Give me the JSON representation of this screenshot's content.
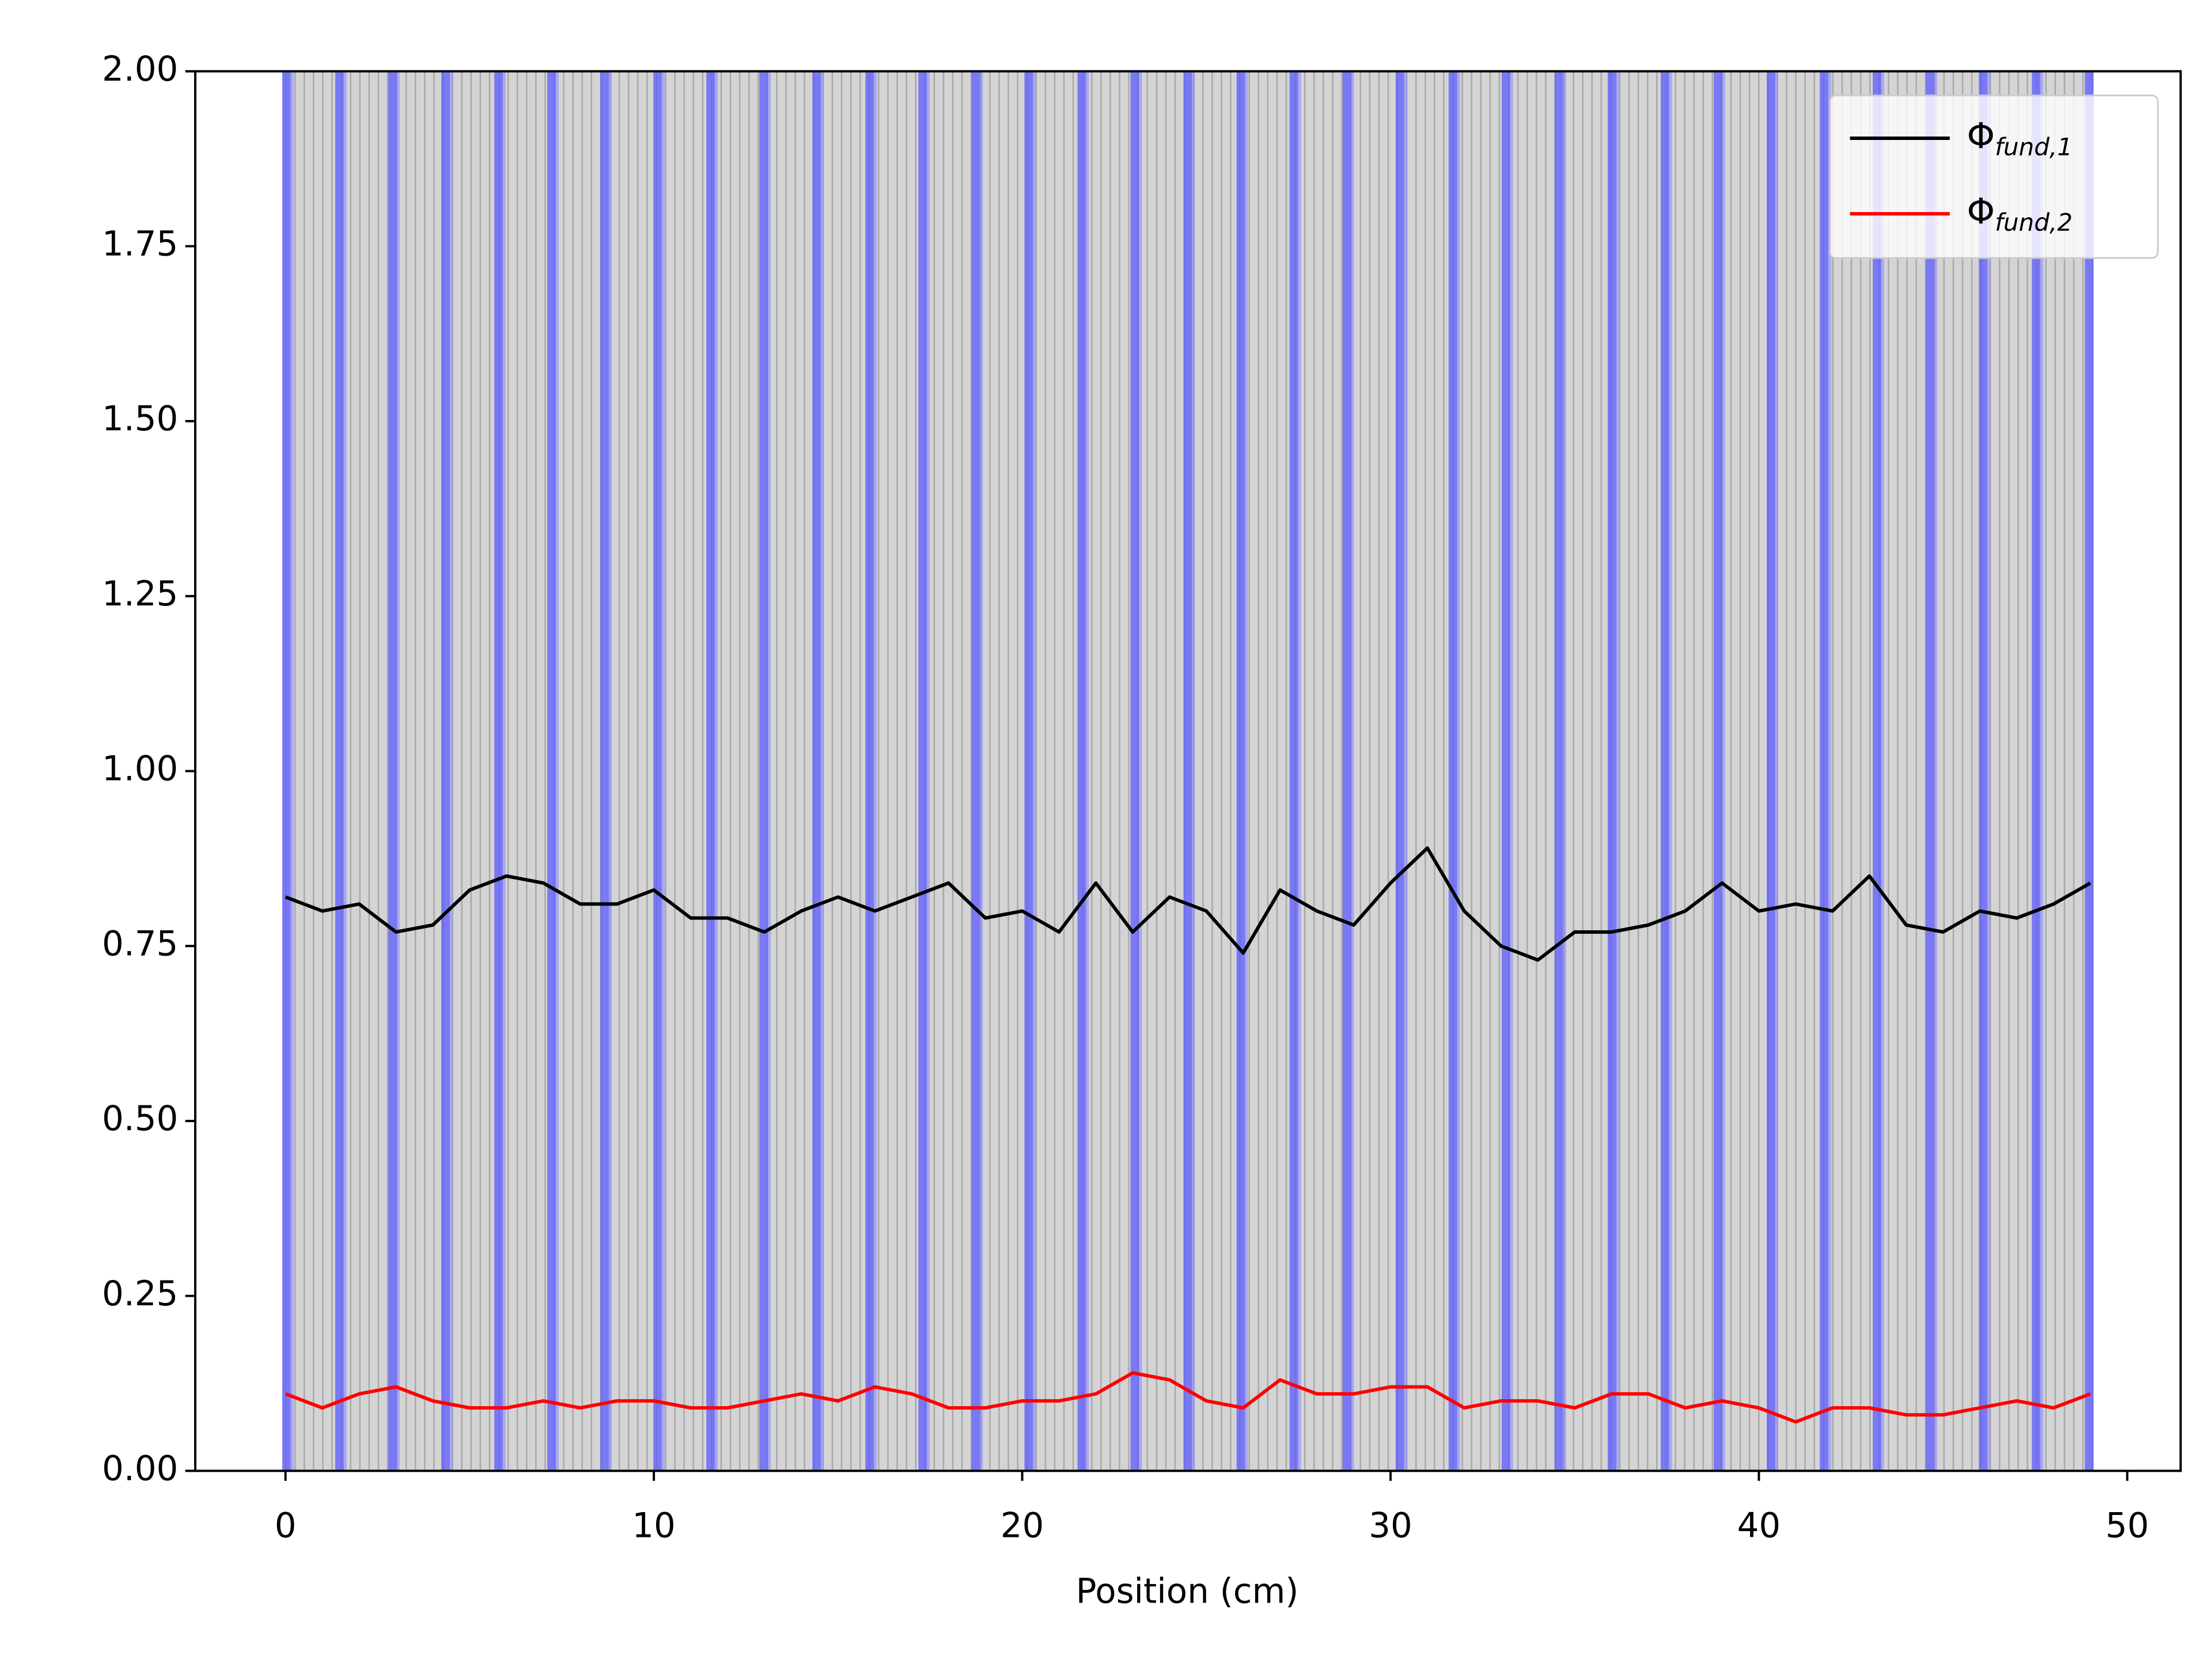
{
  "chart_data": {
    "type": "line",
    "xlabel": "Position (cm)",
    "x": [
      0,
      1,
      2,
      3,
      4,
      5,
      6,
      7,
      8,
      9,
      10,
      11,
      12,
      13,
      14,
      15,
      16,
      17,
      18,
      19,
      20,
      21,
      22,
      23,
      24,
      25,
      26,
      27,
      28,
      29,
      30,
      31,
      32,
      33,
      34,
      35,
      36,
      37,
      38,
      39,
      40,
      41,
      42,
      43,
      44,
      45,
      46,
      47,
      48,
      49
    ],
    "series": [
      {
        "name": "Φfund,1",
        "color": "#000000",
        "values": [
          0.82,
          0.8,
          0.81,
          0.77,
          0.78,
          0.83,
          0.85,
          0.84,
          0.81,
          0.81,
          0.83,
          0.79,
          0.79,
          0.77,
          0.8,
          0.82,
          0.8,
          0.82,
          0.84,
          0.79,
          0.8,
          0.77,
          0.84,
          0.77,
          0.82,
          0.8,
          0.74,
          0.83,
          0.8,
          0.78,
          0.84,
          0.89,
          0.8,
          0.75,
          0.73,
          0.77,
          0.77,
          0.78,
          0.8,
          0.84,
          0.8,
          0.81,
          0.8,
          0.85,
          0.78,
          0.77,
          0.8,
          0.79,
          0.81,
          0.84
        ]
      },
      {
        "name": "Φfund,2",
        "color": "#ff0000",
        "values": [
          0.11,
          0.09,
          0.11,
          0.12,
          0.1,
          0.09,
          0.09,
          0.1,
          0.09,
          0.1,
          0.1,
          0.09,
          0.09,
          0.1,
          0.11,
          0.1,
          0.12,
          0.11,
          0.09,
          0.09,
          0.1,
          0.1,
          0.11,
          0.14,
          0.13,
          0.1,
          0.09,
          0.13,
          0.11,
          0.11,
          0.12,
          0.12,
          0.09,
          0.1,
          0.1,
          0.09,
          0.11,
          0.11,
          0.09,
          0.1,
          0.09,
          0.07,
          0.09,
          0.09,
          0.08,
          0.08,
          0.09,
          0.1,
          0.09,
          0.11
        ]
      }
    ],
    "xlim": [
      -2.45,
      51.45
    ],
    "xticks": [
      0,
      10,
      20,
      30,
      40,
      50
    ],
    "ylim": [
      0,
      2
    ],
    "yticks": [
      {
        "value": 0,
        "label": "0.00"
      },
      {
        "value": 0.25,
        "label": "0.25"
      },
      {
        "value": 0.5,
        "label": "0.50"
      },
      {
        "value": 0.75,
        "label": "0.75"
      },
      {
        "value": 1,
        "label": "1.00"
      },
      {
        "value": 1.25,
        "label": "1.25"
      },
      {
        "value": 1.5,
        "label": "1.50"
      },
      {
        "value": 1.75,
        "label": "1.75"
      },
      {
        "value": 2,
        "label": "2.00"
      }
    ],
    "legend": "upper right"
  }
}
